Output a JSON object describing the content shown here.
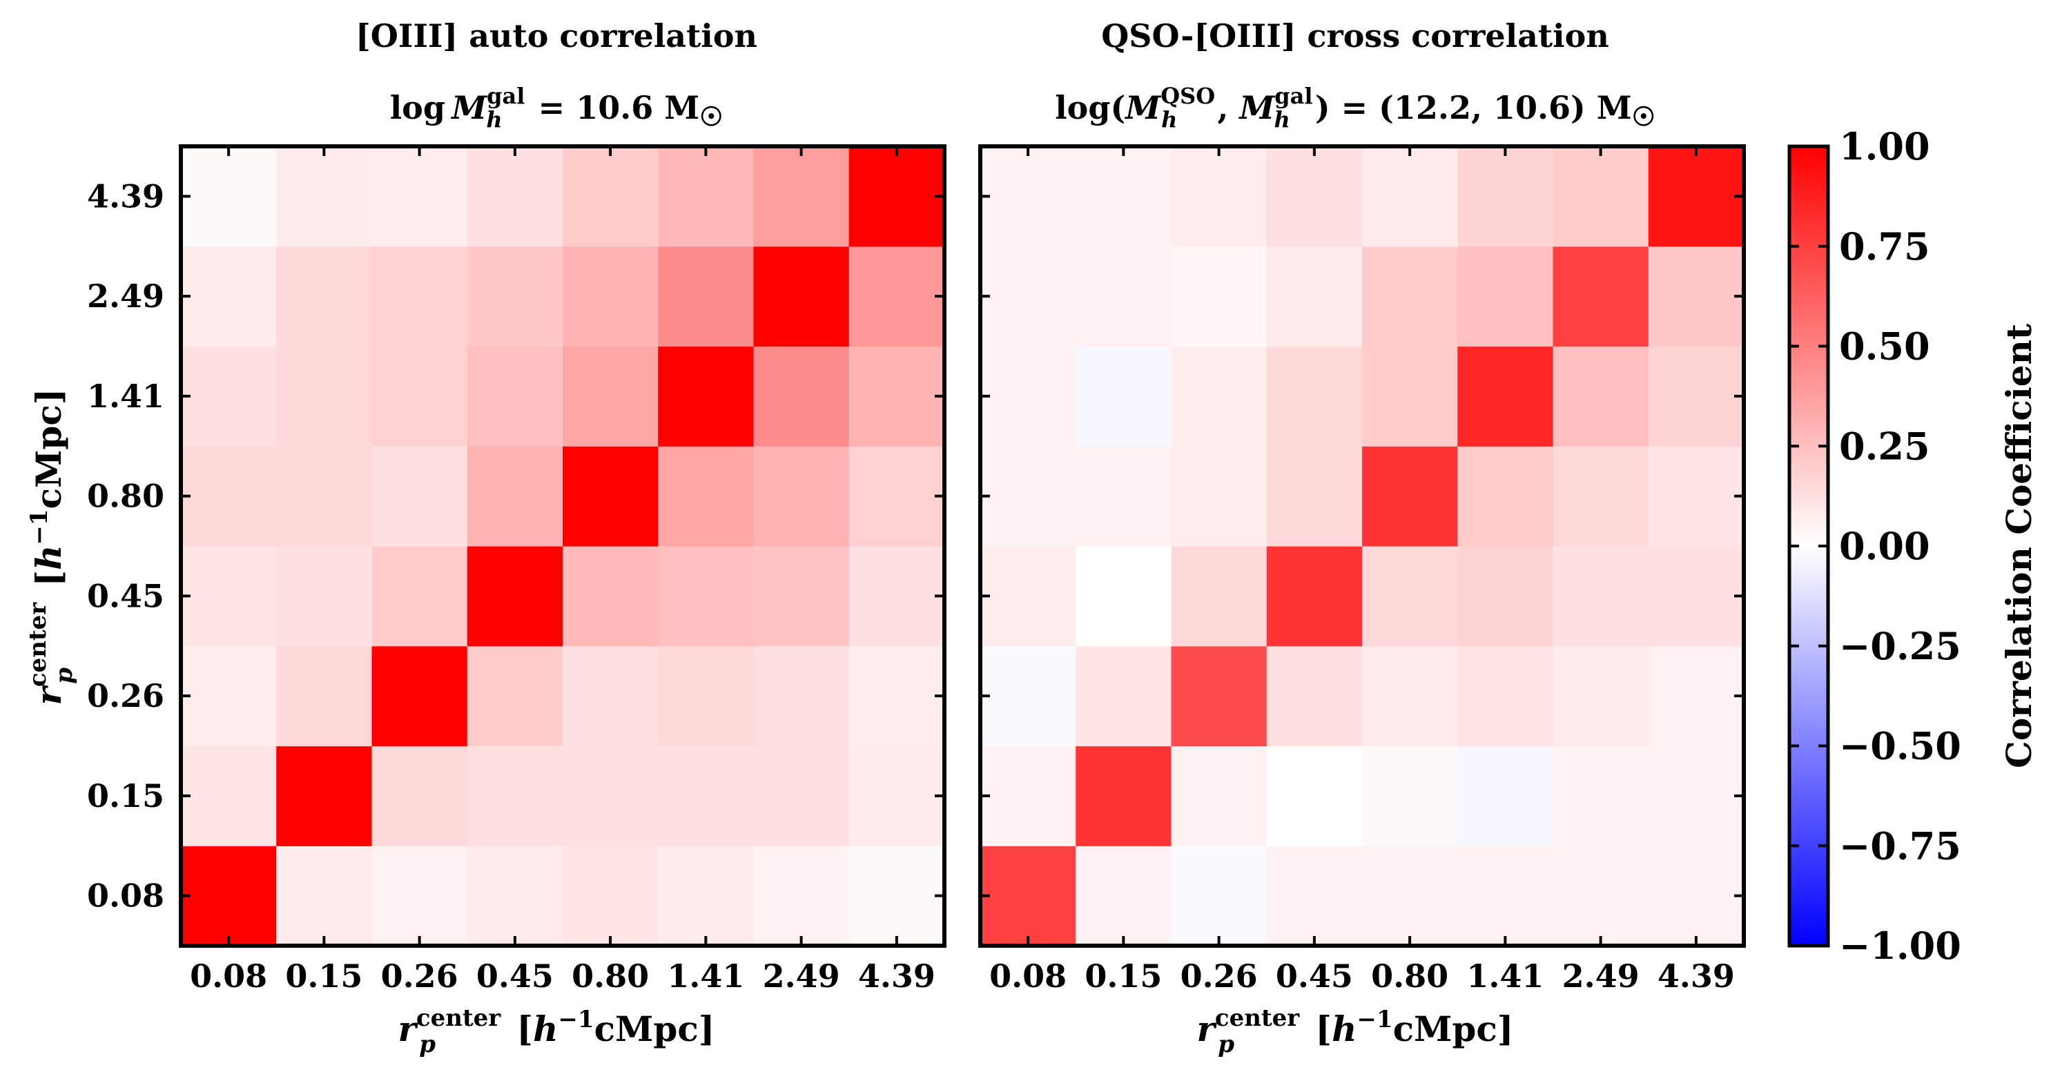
{
  "chart_data": [
    {
      "type": "heatmap",
      "title": "[OIII] auto correlation",
      "subtitle": "log M_h^gal = 10.6 M☉",
      "xlabel": "r_p^center [h^-1 cMpc]",
      "ylabel": "r_p^center [h^-1 cMpc]",
      "categories": [
        "0.08",
        "0.15",
        "0.26",
        "0.45",
        "0.80",
        "1.41",
        "2.49",
        "4.39"
      ],
      "value_range": [
        -1.0,
        1.0
      ],
      "matrix": [
        [
          1.0,
          0.08,
          0.05,
          0.08,
          0.1,
          0.08,
          0.05,
          0.02
        ],
        [
          0.1,
          1.0,
          0.15,
          0.12,
          0.12,
          0.12,
          0.12,
          0.08
        ],
        [
          0.07,
          0.15,
          1.0,
          0.2,
          0.12,
          0.15,
          0.12,
          0.07
        ],
        [
          0.1,
          0.12,
          0.2,
          1.0,
          0.27,
          0.25,
          0.23,
          0.12
        ],
        [
          0.15,
          0.15,
          0.12,
          0.3,
          1.0,
          0.35,
          0.3,
          0.18
        ],
        [
          0.12,
          0.15,
          0.18,
          0.25,
          0.35,
          1.0,
          0.45,
          0.3
        ],
        [
          0.08,
          0.15,
          0.18,
          0.22,
          0.3,
          0.45,
          1.0,
          0.4
        ],
        [
          0.02,
          0.08,
          0.07,
          0.12,
          0.2,
          0.28,
          0.38,
          1.0
        ]
      ]
    },
    {
      "type": "heatmap",
      "title": "QSO-[OIII] cross correlation",
      "subtitle": "log(M_h^QSO, M_h^gal) = (12.2, 10.6) M☉",
      "xlabel": "r_p^center [h^-1 cMpc]",
      "ylabel": "",
      "categories": [
        "0.08",
        "0.15",
        "0.26",
        "0.45",
        "0.80",
        "1.41",
        "2.49",
        "4.39"
      ],
      "value_range": [
        -1.0,
        1.0
      ],
      "matrix": [
        [
          0.75,
          0.05,
          -0.02,
          0.05,
          0.05,
          0.05,
          0.05,
          0.05
        ],
        [
          0.05,
          0.8,
          0.05,
          0.0,
          0.02,
          -0.03,
          0.05,
          0.05
        ],
        [
          -0.02,
          0.1,
          0.7,
          0.12,
          0.08,
          0.1,
          0.08,
          0.05
        ],
        [
          0.07,
          0.0,
          0.15,
          0.8,
          0.15,
          0.17,
          0.12,
          0.12
        ],
        [
          0.05,
          0.05,
          0.07,
          0.15,
          0.8,
          0.2,
          0.15,
          0.1
        ],
        [
          0.05,
          -0.03,
          0.07,
          0.15,
          0.2,
          0.85,
          0.25,
          0.17
        ],
        [
          0.05,
          0.05,
          0.03,
          0.08,
          0.2,
          0.25,
          0.75,
          0.22
        ],
        [
          0.05,
          0.05,
          0.07,
          0.12,
          0.08,
          0.17,
          0.2,
          0.92
        ]
      ]
    }
  ],
  "colorbar": {
    "label": "Correlation Coefficient",
    "ticks": [
      "1.00",
      "0.75",
      "0.50",
      "0.25",
      "0.00",
      "−0.25",
      "−0.50",
      "−0.75",
      "−1.00"
    ],
    "colormap": "bwr",
    "color_low": "#0000ff",
    "color_mid": "#ffffff",
    "color_high": "#ff0000"
  },
  "titles": {
    "left_line1": "[OIII] auto correlation",
    "left_line2_pre": "log ",
    "left_line2_M": "M",
    "left_line2_sup": "gal",
    "left_line2_sub": "h",
    "left_line2_post": " = 10.6 M",
    "left_line2_sun": "☉",
    "right_line1": "QSO-[OIII] cross correlation",
    "right_line2_pre": "log(",
    "right_line2_M1": "M",
    "right_line2_sup1": "QSO",
    "right_line2_sub1": "h",
    "right_line2_comma": ", ",
    "right_line2_M2": "M",
    "right_line2_sup2": "gal",
    "right_line2_sub2": "h",
    "right_line2_post": ") = (12.2, 10.6) M",
    "right_line2_sun": "☉"
  },
  "axis_label": {
    "r": "r",
    "sup": "center",
    "sub": "p",
    "bracket_open": " [",
    "h": "h",
    "exp": "−1",
    "unit": "cMpc]"
  }
}
